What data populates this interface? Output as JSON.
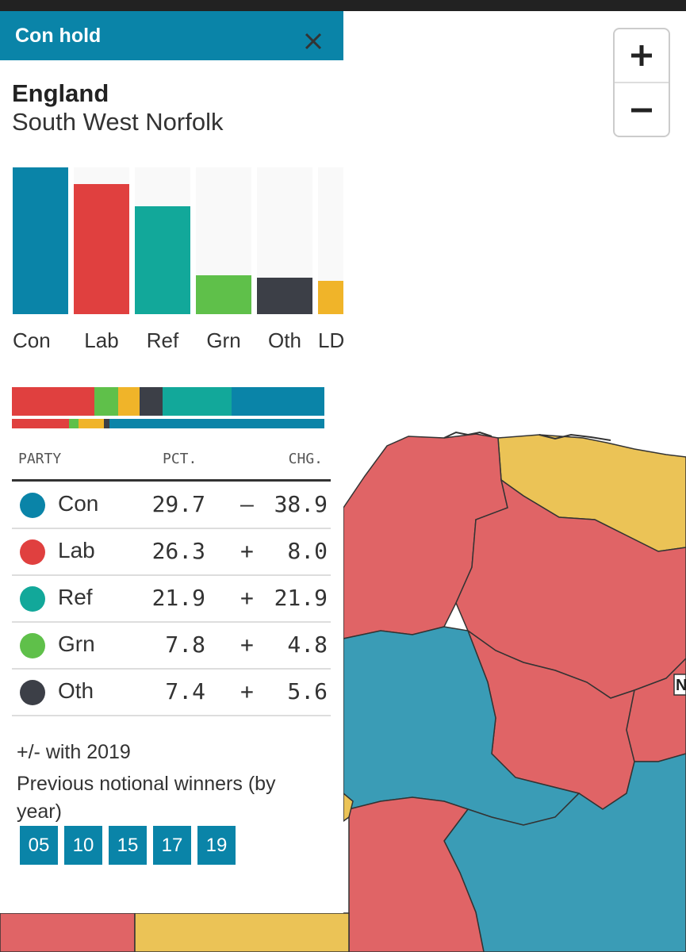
{
  "header": {
    "title": "Con hold",
    "color": "#0a84a8"
  },
  "location": {
    "region": "England",
    "constituency": "South West Norfolk"
  },
  "colors": {
    "Con": "#0a84a8",
    "Lab": "#e0403f",
    "Ref": "#12a89a",
    "Grn": "#5fc04a",
    "Oth": "#3c3f47",
    "LD": "#f0b429",
    "map_lab": "#e06466",
    "map_con": "#3a9cb6",
    "map_ld": "#ebc356"
  },
  "chart_data": {
    "type": "bar",
    "categories": [
      "Con",
      "Lab",
      "Ref",
      "Grn",
      "Oth",
      "LD"
    ],
    "values": [
      29.7,
      26.3,
      21.9,
      7.8,
      7.4,
      6.8
    ],
    "title": "",
    "xlabel": "",
    "ylabel": "",
    "ylim": [
      0,
      29.7
    ]
  },
  "strips": {
    "current": [
      {
        "party": "Lab",
        "value": 26.3
      },
      {
        "party": "Grn",
        "value": 7.8
      },
      {
        "party": "LD",
        "value": 6.8
      },
      {
        "party": "Oth",
        "value": 7.4
      },
      {
        "party": "Ref",
        "value": 21.9
      },
      {
        "party": "Con",
        "value": 29.7
      }
    ],
    "previous": [
      {
        "party": "Lab",
        "value": 18.3
      },
      {
        "party": "Grn",
        "value": 3.0
      },
      {
        "party": "LD",
        "value": 8.0
      },
      {
        "party": "Oth",
        "value": 1.8
      },
      {
        "party": "Con",
        "value": 68.6
      }
    ]
  },
  "table": {
    "headers": {
      "party": "PARTY",
      "pct": "PCT.",
      "chg": "CHG."
    },
    "rows": [
      {
        "party": "Con",
        "pct": "29.7",
        "sign": "–",
        "chg": "38.9"
      },
      {
        "party": "Lab",
        "pct": "26.3",
        "sign": "+",
        "chg": "8.0"
      },
      {
        "party": "Ref",
        "pct": "21.9",
        "sign": "+",
        "chg": "21.9"
      },
      {
        "party": "Grn",
        "pct": "7.8",
        "sign": "+",
        "chg": "4.8"
      },
      {
        "party": "Oth",
        "pct": "7.4",
        "sign": "+",
        "chg": "5.6"
      }
    ]
  },
  "footnote": "+/- with 2019",
  "previous_winners": {
    "title": "Previous notional winners (by year)",
    "years": [
      "05",
      "10",
      "15",
      "17",
      "19"
    ]
  },
  "map": {
    "partial_label": "N"
  },
  "zoom": {
    "in_icon": "plus-icon",
    "out_icon": "minus-icon"
  }
}
